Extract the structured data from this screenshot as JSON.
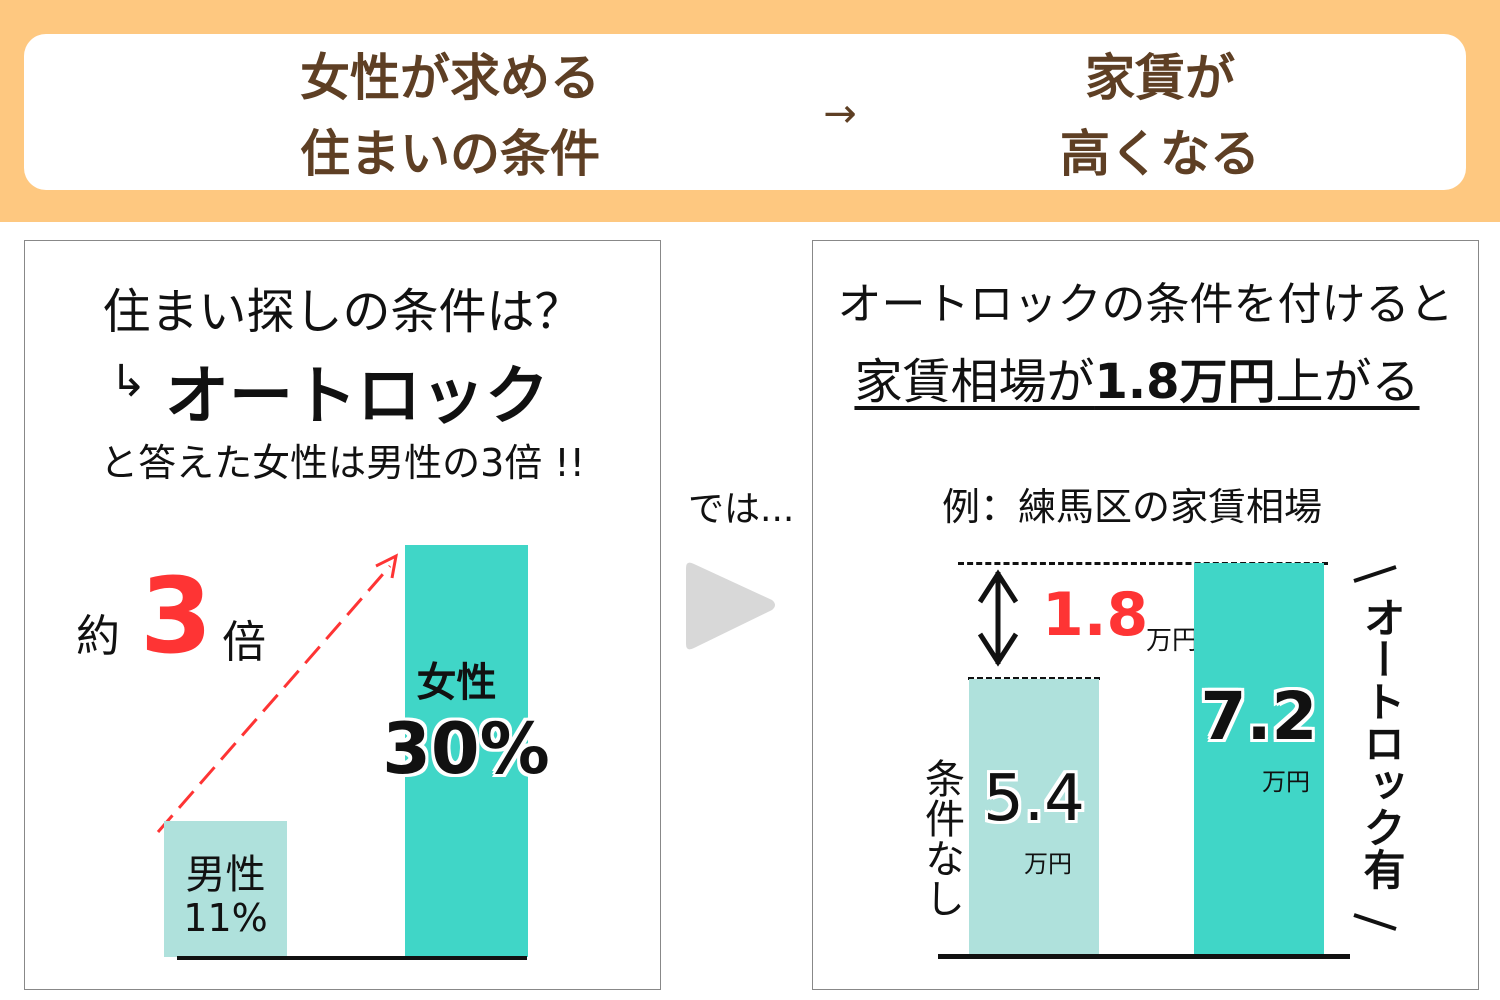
{
  "banner": {
    "left_line1": "女性が求める",
    "left_line2": "住まいの条件",
    "arrow": "→",
    "right_line1": "家賃が",
    "right_line2": "高くなる"
  },
  "left_panel": {
    "question": "住まい探しの条件は？",
    "answer_arrow": "↳",
    "answer": "オートロック",
    "statement": "と答えた女性は男性の3倍 !!",
    "ratio_prefix": "約",
    "ratio_value": "3",
    "ratio_suffix": "倍"
  },
  "middle": {
    "text": "では...",
    "play_icon": "play-triangle-icon"
  },
  "right_panel": {
    "line1": "オートロックの条件を付けると",
    "line2_a": "家賃相場が",
    "line2_b": "1.8万円",
    "line2_c": "上がる",
    "example": "例：練馬区の家賃相場",
    "diff_value": "1.8",
    "diff_unit": "万円",
    "bracket_label": "オートロック有"
  },
  "colors": {
    "banner_bg": "#fec880",
    "banner_text": "#5e3f24",
    "teal": "#40d6c7",
    "light_teal": "#afe1dc",
    "red": "#fe3434"
  },
  "chart_data": [
    {
      "type": "bar",
      "categories": [
        "男性",
        "女性"
      ],
      "values": [
        11,
        30
      ],
      "value_labels": [
        "11%",
        "30%"
      ],
      "unit": "%",
      "colors": [
        "#afe1dc",
        "#40d6c7"
      ]
    },
    {
      "type": "bar",
      "categories": [
        "条件なし",
        "オートロック有"
      ],
      "values": [
        5.4,
        7.2
      ],
      "value_labels": [
        "5.4",
        "7.2"
      ],
      "unit": "万円",
      "colors": [
        "#afe1dc",
        "#40d6c7"
      ]
    }
  ]
}
